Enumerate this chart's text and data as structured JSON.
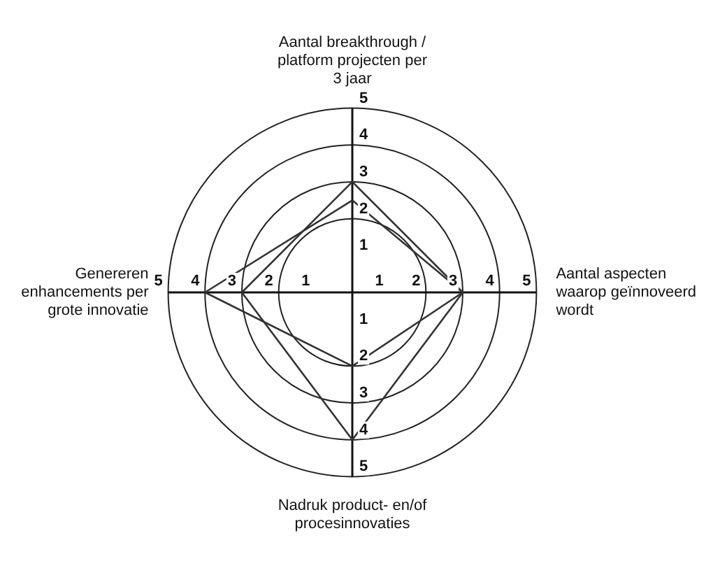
{
  "chart_data": {
    "type": "radar",
    "categories": [
      "Aantal breakthrough /\nplatform projecten per\n3 jaar",
      "Aantal aspecten\nwaarop geïnnoveerd\nwordt",
      "Nadruk product- en/of\nprocesinnovaties",
      "Genereren\nenhancements per\ngrote innovatie"
    ],
    "series": [
      {
        "color": "#333333",
        "values": [
          3,
          3,
          4,
          3
        ]
      },
      {
        "color": "#333333",
        "values": [
          2.5,
          3,
          2,
          4
        ]
      }
    ],
    "ylim": [
      0,
      5
    ],
    "yticks": [
      1,
      2,
      3,
      4,
      5
    ],
    "grid": true,
    "legend": false,
    "marker": "none",
    "line_style": "solid",
    "annotations": [
      "1",
      "2",
      "3",
      "4",
      "5",
      "1",
      "2",
      "3",
      "4",
      "5",
      "1",
      "2",
      "3",
      "4",
      "5"
    ]
  }
}
